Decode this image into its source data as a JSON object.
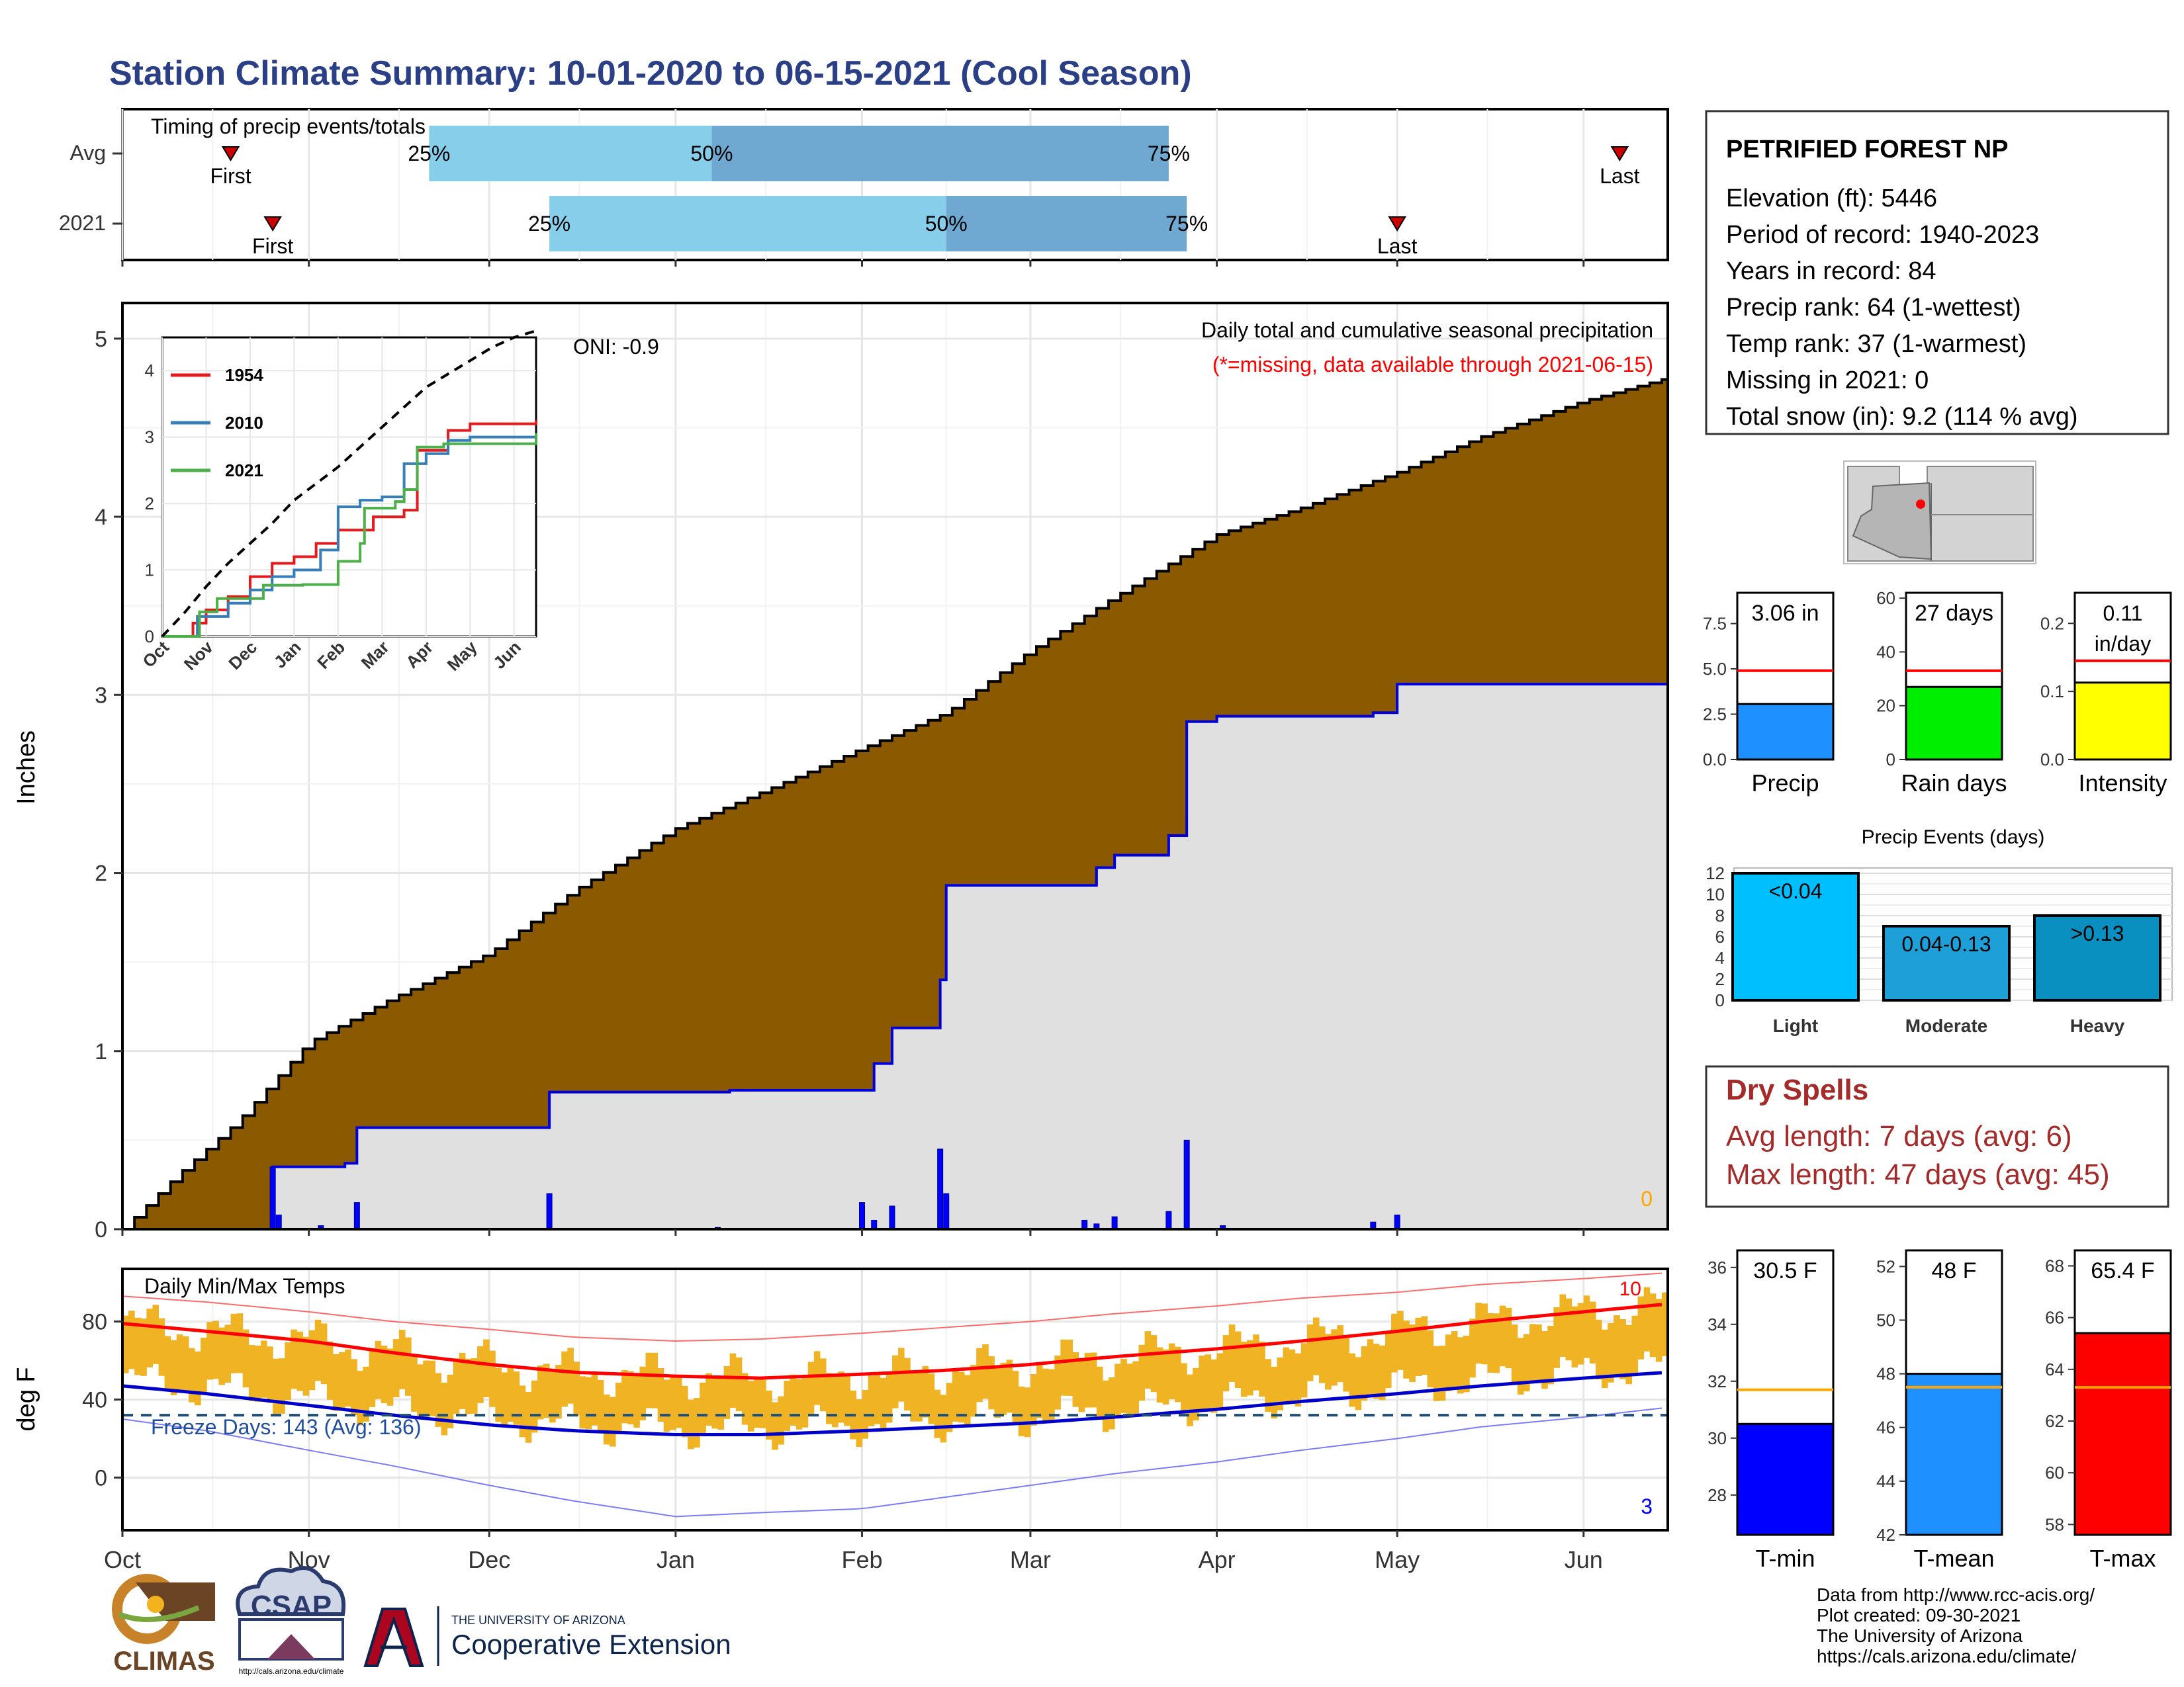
{
  "title": "Station Climate Summary: 10-01-2020 to 06-15-2021 (Cool Season)",
  "colors": {
    "title": "#2b3f86",
    "dry_spells": "#a52a2a",
    "cumulative_avg": "#8b5a00",
    "cumulative_2021": "#e0e0e0",
    "daily_bar": "#0000ff",
    "range_bar": "#f0b323",
    "tmax_mean": "#ff0000",
    "tmin_mean": "#0000cc"
  },
  "timing": {
    "title": "Timing of precip events/totals",
    "rows": [
      {
        "label": "Avg",
        "first_date": "2020-10-19",
        "first_label": "First",
        "p25_date": "2020-11-21",
        "p50_date": "2021-01-07",
        "p75_date": "2021-03-24",
        "p25_label": "25%",
        "p50_label": "50%",
        "p75_label": "75%",
        "last_date": "2021-06-07",
        "last_label": "Last"
      },
      {
        "label": "2021",
        "first_date": "2020-10-26",
        "first_label": "First",
        "p25_date": "2020-12-11",
        "p50_date": "2021-02-15",
        "p75_date": "2021-03-27",
        "p25_label": "25%",
        "p50_label": "50%",
        "p75_label": "75%",
        "last_date": "2021-05-01",
        "last_label": "Last"
      }
    ]
  },
  "chart_data": [
    {
      "id": "precip",
      "type": "area",
      "ylabel": "Inches",
      "ylim": [
        0,
        5.2
      ],
      "yticks": [
        0,
        1,
        2,
        3,
        4,
        5
      ],
      "annotation_title": "Daily total and cumulative seasonal precipitation",
      "annotation_missing": "(*=missing, data available through 2021-06-15)",
      "oni_label": "ONI: -0.9",
      "missing_count": "0",
      "avg_cumulative": {
        "x": [
          "2020-10-01",
          "2020-10-10",
          "2020-10-20",
          "2020-11-01",
          "2020-11-15",
          "2020-12-01",
          "2020-12-15",
          "2021-01-01",
          "2021-01-15",
          "2021-02-01",
          "2021-02-15",
          "2021-03-01",
          "2021-03-15",
          "2021-04-01",
          "2021-04-15",
          "2021-05-01",
          "2021-05-15",
          "2021-06-01",
          "2021-06-15"
        ],
        "y": [
          0.0,
          0.3,
          0.6,
          1.05,
          1.3,
          1.55,
          1.9,
          2.25,
          2.45,
          2.7,
          2.9,
          3.25,
          3.55,
          3.9,
          4.05,
          4.25,
          4.45,
          4.65,
          4.78
        ]
      },
      "season_cumulative": {
        "x": [
          "2020-10-01",
          "2020-10-26",
          "2020-11-07",
          "2020-11-09",
          "2020-12-11",
          "2021-01-08",
          "2021-01-10",
          "2021-02-01",
          "2021-02-03",
          "2021-02-06",
          "2021-02-14",
          "2021-02-15",
          "2021-03-10",
          "2021-03-12",
          "2021-03-15",
          "2021-03-24",
          "2021-03-27",
          "2021-04-01",
          "2021-04-15",
          "2021-04-27",
          "2021-05-01",
          "2021-06-15"
        ],
        "y": [
          0.0,
          0.35,
          0.37,
          0.57,
          0.77,
          0.77,
          0.78,
          0.78,
          0.93,
          1.13,
          1.4,
          1.93,
          1.93,
          2.03,
          2.1,
          2.21,
          2.85,
          2.88,
          2.88,
          2.9,
          3.06,
          3.06
        ]
      },
      "daily_precip": {
        "x": [
          "2020-10-26",
          "2020-10-27",
          "2020-11-03",
          "2020-11-09",
          "2020-12-11",
          "2021-01-08",
          "2021-02-01",
          "2021-02-03",
          "2021-02-06",
          "2021-02-14",
          "2021-02-15",
          "2021-03-10",
          "2021-03-12",
          "2021-03-15",
          "2021-03-24",
          "2021-03-27",
          "2021-04-02",
          "2021-04-27",
          "2021-05-01"
        ],
        "y": [
          0.35,
          0.08,
          0.02,
          0.15,
          0.2,
          0.01,
          0.15,
          0.05,
          0.13,
          0.45,
          0.2,
          0.05,
          0.03,
          0.07,
          0.1,
          0.5,
          0.02,
          0.04,
          0.08
        ]
      },
      "xticks": [
        "Oct",
        "Nov",
        "Dec",
        "Jan",
        "Feb",
        "Mar",
        "Apr",
        "May",
        "Jun"
      ]
    },
    {
      "id": "inset",
      "type": "line",
      "ylim": [
        0,
        4.5
      ],
      "yticks": [
        0,
        1,
        2,
        3,
        4
      ],
      "xticks": [
        "Oct",
        "Nov",
        "Dec",
        "Jan",
        "Feb",
        "Mar",
        "Apr",
        "May",
        "Jun"
      ],
      "series": [
        {
          "name": "1954",
          "color": "#e41a1c",
          "x": [
            0,
            0.7,
            1.0,
            1.5,
            2.0,
            2.5,
            3.0,
            3.5,
            4.0,
            4.8,
            5.5,
            5.8,
            6.5,
            7.0,
            8.5
          ],
          "y": [
            0,
            0.2,
            0.4,
            0.6,
            0.9,
            1.1,
            1.2,
            1.4,
            1.6,
            1.8,
            1.9,
            2.8,
            3.1,
            3.2,
            3.25
          ]
        },
        {
          "name": "2010",
          "color": "#377eb8",
          "x": [
            0,
            0.8,
            1.5,
            2.0,
            2.5,
            3.0,
            3.6,
            4.0,
            4.5,
            5.0,
            5.5,
            6.0,
            6.5,
            7.0,
            8.5
          ],
          "y": [
            0,
            0.3,
            0.5,
            0.7,
            0.9,
            1.0,
            1.3,
            1.95,
            2.05,
            2.1,
            2.6,
            2.75,
            2.95,
            3.0,
            3.0
          ]
        },
        {
          "name": "2021",
          "color": "#4daf4a",
          "x": [
            0,
            0.85,
            1.25,
            2.3,
            3.2,
            4.0,
            4.5,
            4.6,
            4.85,
            5.3,
            5.5,
            5.8,
            6.4,
            8.5
          ],
          "y": [
            0,
            0.37,
            0.57,
            0.77,
            0.78,
            1.13,
            1.4,
            1.93,
            1.93,
            2.03,
            2.21,
            2.85,
            2.9,
            3.06
          ]
        },
        {
          "name": "",
          "color": "#000000",
          "dashed": true,
          "x": [
            0,
            0.5,
            1.0,
            1.5,
            2.0,
            2.5,
            3.0,
            3.5,
            4.0,
            4.5,
            5.0,
            5.5,
            6.0,
            6.5,
            7.0,
            7.5,
            8.0,
            8.5
          ],
          "y": [
            0,
            0.35,
            0.75,
            1.1,
            1.4,
            1.7,
            2.05,
            2.3,
            2.55,
            2.85,
            3.15,
            3.45,
            3.75,
            3.95,
            4.15,
            4.35,
            4.5,
            4.6
          ]
        }
      ]
    },
    {
      "id": "temps",
      "type": "bar",
      "title": "Daily Min/Max Temps",
      "ylabel": "deg F",
      "ylim": [
        -27,
        107
      ],
      "yticks": [
        0,
        40,
        80
      ],
      "freeze_label": "Freeze Days: 143 (Avg: 136)",
      "freeze_line": 32,
      "corner_top": "10",
      "corner_bottom": "3",
      "xticks": [
        "Oct",
        "Nov",
        "Dec",
        "Jan",
        "Feb",
        "Mar",
        "Apr",
        "May",
        "Jun"
      ],
      "tmax_mean": {
        "x": [
          "2020-10-01",
          "2020-10-15",
          "2020-11-01",
          "2020-11-15",
          "2020-12-01",
          "2020-12-15",
          "2021-01-01",
          "2021-01-15",
          "2021-02-01",
          "2021-02-15",
          "2021-03-01",
          "2021-03-15",
          "2021-04-01",
          "2021-04-15",
          "2021-05-01",
          "2021-05-15",
          "2021-06-01",
          "2021-06-15"
        ],
        "y": [
          79,
          75,
          70,
          64,
          58,
          54,
          52,
          51,
          53,
          55,
          58,
          62,
          66,
          70,
          75,
          80,
          85,
          89
        ]
      },
      "tmin_mean": {
        "x": [
          "2020-10-01",
          "2020-10-15",
          "2020-11-01",
          "2020-11-15",
          "2020-12-01",
          "2020-12-15",
          "2021-01-01",
          "2021-01-15",
          "2021-02-01",
          "2021-02-15",
          "2021-03-01",
          "2021-03-15",
          "2021-04-01",
          "2021-04-15",
          "2021-05-01",
          "2021-05-15",
          "2021-06-01",
          "2021-06-15"
        ],
        "y": [
          47,
          43,
          37,
          32,
          27,
          24,
          22,
          22,
          24,
          26,
          28,
          31,
          35,
          39,
          43,
          47,
          51,
          54
        ]
      },
      "tmax_record": {
        "x": [
          "2020-10-01",
          "2020-10-15",
          "2020-11-01",
          "2020-11-15",
          "2020-12-01",
          "2020-12-15",
          "2021-01-01",
          "2021-01-15",
          "2021-02-01",
          "2021-02-15",
          "2021-03-01",
          "2021-03-15",
          "2021-04-01",
          "2021-04-15",
          "2021-05-01",
          "2021-05-15",
          "2021-06-01",
          "2021-06-15"
        ],
        "y": [
          93,
          90,
          85,
          80,
          76,
          72,
          70,
          71,
          74,
          77,
          80,
          84,
          88,
          92,
          95,
          99,
          102,
          105
        ]
      },
      "tmin_record": {
        "x": [
          "2020-10-01",
          "2020-10-15",
          "2020-11-01",
          "2020-11-15",
          "2020-12-01",
          "2020-12-15",
          "2021-01-01",
          "2021-01-15",
          "2021-02-01",
          "2021-02-15",
          "2021-03-01",
          "2021-03-15",
          "2021-04-01",
          "2021-04-15",
          "2021-05-01",
          "2021-05-15",
          "2021-06-01",
          "2021-06-15"
        ],
        "y": [
          30,
          24,
          14,
          6,
          -4,
          -12,
          -20,
          -18,
          -16,
          -10,
          -4,
          2,
          8,
          14,
          20,
          26,
          31,
          36
        ]
      }
    },
    {
      "id": "bars_precip",
      "type": "bar",
      "categories": [
        "Precip",
        "Rain days",
        "Intensity"
      ],
      "panels": [
        {
          "category": "Precip",
          "value": 3.06,
          "avg": 4.9,
          "label": "3.06 in",
          "ylim": [
            0,
            9.2
          ],
          "yticks": [
            "0.0",
            "2.5",
            "5.0",
            "7.5"
          ],
          "tickvals": [
            0,
            2.5,
            5,
            7.5
          ],
          "color": "#1e90ff"
        },
        {
          "category": "Rain days",
          "value": 27,
          "avg": 33,
          "label": "27 days",
          "ylim": [
            0,
            62
          ],
          "yticks": [
            "0",
            "20",
            "40",
            "60"
          ],
          "tickvals": [
            0,
            20,
            40,
            60
          ],
          "color": "#00ee00"
        },
        {
          "category": "Intensity",
          "value": 0.113,
          "avg": 0.145,
          "label_line1": "0.11",
          "label_line2": "in/day",
          "ylim": [
            0,
            0.245
          ],
          "yticks": [
            "0.0",
            "0.1",
            "0.2"
          ],
          "tickvals": [
            0,
            0.1,
            0.2
          ],
          "color": "#ffff00"
        }
      ]
    },
    {
      "id": "events",
      "type": "bar",
      "title": "Precip Events (days)",
      "categories": [
        "Light",
        "Moderate",
        "Heavy"
      ],
      "values": [
        12,
        7,
        8
      ],
      "bar_labels": [
        "<0.04",
        "0.04-0.13",
        ">0.13"
      ],
      "ylim": [
        0,
        12.5
      ],
      "yticks": [
        0,
        2,
        4,
        6,
        8,
        10,
        12
      ],
      "colors": [
        "#00bfff",
        "#1e9fd8",
        "#0a90c0"
      ]
    },
    {
      "id": "bars_temp",
      "type": "bar",
      "categories": [
        "T-min",
        "T-mean",
        "T-max"
      ],
      "panels": [
        {
          "category": "T-min",
          "value": 30.5,
          "avg": 31.7,
          "label": "30.5 F",
          "ylim": [
            26.6,
            36.6
          ],
          "yticks": [
            "28",
            "30",
            "32",
            "34",
            "36"
          ],
          "tickvals": [
            28,
            30,
            32,
            34,
            36
          ],
          "color": "#0000ff"
        },
        {
          "category": "T-mean",
          "value": 48,
          "avg": 47.5,
          "label": "48 F",
          "ylim": [
            42,
            52.6
          ],
          "yticks": [
            "42",
            "44",
            "46",
            "48",
            "50",
            "52"
          ],
          "tickvals": [
            42,
            44,
            46,
            48,
            50,
            52
          ],
          "color": "#1e90ff"
        },
        {
          "category": "T-max",
          "value": 65.4,
          "avg": 63.3,
          "label": "65.4 F",
          "ylim": [
            57.6,
            68.6
          ],
          "yticks": [
            "58",
            "60",
            "62",
            "64",
            "66",
            "68"
          ],
          "tickvals": [
            58,
            60,
            62,
            64,
            66,
            68
          ],
          "color": "#ff0000"
        }
      ]
    }
  ],
  "station": {
    "name": "PETRIFIED FOREST NP",
    "lines": [
      "Elevation (ft): 5446",
      "Period of record: 1940-2023",
      "Years in record: 84",
      "Precip rank: 64 (1-wettest)",
      "Temp rank: 37 (1-warmest)",
      "Missing in 2021: 0",
      "Total snow (in): 9.2 (114 % avg)"
    ]
  },
  "dry_spells": {
    "title": "Dry Spells",
    "avg": "Avg length: 7 days (avg: 6)",
    "max": "Max length: 47 days (avg: 45)"
  },
  "footer": {
    "lines": [
      "Data from http://www.rcc-acis.org/",
      "Plot created: 09-30-2021",
      "The University of Arizona",
      "https://cals.arizona.edu/climate/"
    ]
  },
  "logos": {
    "climas": "CLIMAS",
    "csap": "CSAP",
    "csap_url": "http://cals.arizona.edu/climate",
    "ua_small": "THE UNIVERSITY OF ARIZONA",
    "ua_big": "Cooperative Extension"
  }
}
